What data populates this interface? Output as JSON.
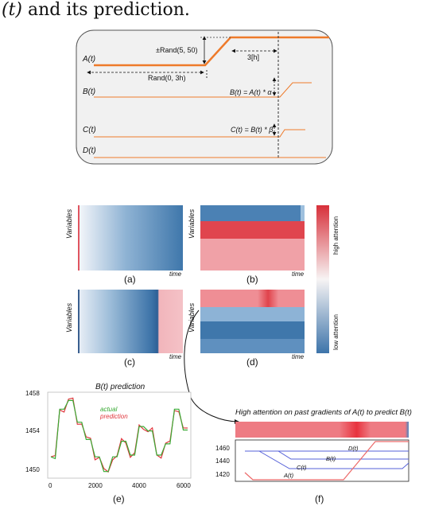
{
  "caption_top": {
    "var": "(t)",
    "rest": " and its prediction."
  },
  "diagram": {
    "a_label": "A(t)",
    "b_label": "B(t)",
    "c_label": "C(t)",
    "d_label": "D(t)",
    "rand_amp": "±Rand(5, 50)",
    "rand_time": "Rand(0, 3h)",
    "delay": "3[h]",
    "b_formula": "B(t) = A(t) * α",
    "c_formula": "C(t) = B(t) * β"
  },
  "heatmaps": {
    "variables_label": "Variables",
    "time_label": "time",
    "labels": [
      "(a)",
      "(b)",
      "(c)",
      "(d)"
    ],
    "high_attention": "high attention",
    "low_attention": "low attention"
  },
  "panel_e": {
    "title": "B(t) prediction",
    "label": "(e)",
    "legend_actual": "actual",
    "legend_prediction": "prediction",
    "yticks": [
      "1458",
      "1454",
      "1450"
    ],
    "xticks": [
      "0",
      "2000",
      "4000",
      "6000"
    ]
  },
  "panel_f": {
    "title": "High attention on past gradients of A(t) to predict B(t)",
    "label": "(f)",
    "yticks": [
      "1460",
      "1440",
      "1420"
    ],
    "series_labels": [
      "D(t)",
      "B(t)",
      "C(t)",
      "A(t)"
    ]
  },
  "colors": {
    "orange": "#ee7a2a",
    "blue": "#3a6fa8",
    "red": "#e0373d",
    "green": "#3aaa35"
  }
}
